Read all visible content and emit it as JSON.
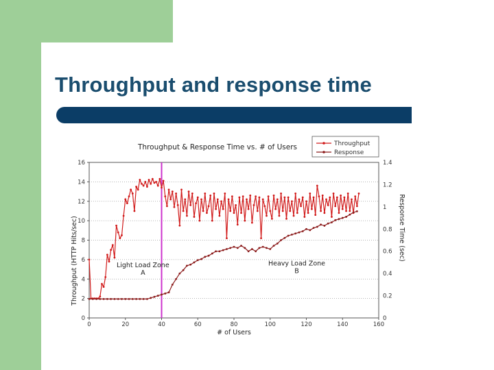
{
  "slide": {
    "title": "Throughput and response time",
    "colors": {
      "green": "#9ecf98",
      "bar": "#0b3d66",
      "title": "#1a4d6e"
    }
  },
  "chart_data": {
    "type": "line",
    "title": "Throughput & Response Time vs. # of Users",
    "xlabel": "# of Users",
    "ylabel": "Throughput (HTTP Hits/sec)",
    "y2label": "Response Time (sec)",
    "xlim": [
      0,
      160
    ],
    "ylim": [
      0,
      16
    ],
    "y2lim": [
      0,
      1.4
    ],
    "xticks": [
      "0",
      "20",
      "40",
      "60",
      "80",
      "100",
      "120",
      "140",
      "160"
    ],
    "yticks": [
      "0",
      "2",
      "4",
      "6",
      "8",
      "10",
      "12",
      "14",
      "16"
    ],
    "y2ticks": [
      "0",
      "0.2",
      "0.4",
      "0.6",
      "0.8",
      "1",
      "1.2",
      "1.4"
    ],
    "legend_position": "top-right",
    "divider_x": 40,
    "annotations": [
      {
        "text": "Light Load Zone",
        "sub": "A",
        "x": 35,
        "y": 5.2
      },
      {
        "text": "Heavy Load Zone",
        "sub": "B",
        "x": 120,
        "y": 5.4
      }
    ],
    "series": [
      {
        "name": "Throughput",
        "axis": "left",
        "color": "#d11a1a",
        "x": [
          0,
          1,
          2,
          3,
          4,
          5,
          6,
          7,
          8,
          9,
          10,
          11,
          12,
          13,
          14,
          15,
          16,
          17,
          18,
          19,
          20,
          21,
          22,
          23,
          24,
          25,
          26,
          27,
          28,
          29,
          30,
          31,
          32,
          33,
          34,
          35,
          36,
          37,
          38,
          39,
          40,
          41,
          42,
          43,
          44,
          45,
          46,
          47,
          48,
          49,
          50,
          51,
          52,
          53,
          54,
          55,
          56,
          57,
          58,
          59,
          60,
          61,
          62,
          63,
          64,
          65,
          66,
          67,
          68,
          69,
          70,
          71,
          72,
          73,
          74,
          75,
          76,
          77,
          78,
          79,
          80,
          81,
          82,
          83,
          84,
          85,
          86,
          87,
          88,
          89,
          90,
          91,
          92,
          93,
          94,
          95,
          96,
          97,
          98,
          99,
          100,
          101,
          102,
          103,
          104,
          105,
          106,
          107,
          108,
          109,
          110,
          111,
          112,
          113,
          114,
          115,
          116,
          117,
          118,
          119,
          120,
          121,
          122,
          123,
          124,
          125,
          126,
          127,
          128,
          129,
          130,
          131,
          132,
          133,
          134,
          135,
          136,
          137,
          138,
          139,
          140,
          141,
          142,
          143,
          144,
          145,
          146,
          147,
          148,
          149
        ],
        "y": [
          6,
          2,
          2,
          2,
          2,
          2,
          2.2,
          3.5,
          3.2,
          4.2,
          6.5,
          5.8,
          7,
          7.5,
          6.2,
          9.5,
          8.8,
          8.2,
          8.5,
          10.5,
          12.2,
          11.8,
          12.5,
          13.2,
          12.8,
          11,
          13.5,
          13.2,
          14.2,
          13.8,
          13.6,
          14,
          13.5,
          14.2,
          13.8,
          14.3,
          13.9,
          14,
          13.6,
          14.3,
          13.4,
          14.1,
          12.5,
          11.5,
          13.2,
          12.2,
          13,
          11.4,
          12.8,
          11.6,
          9.5,
          13.2,
          11,
          12.2,
          10.5,
          13,
          11.6,
          12.8,
          10.4,
          11.8,
          12.4,
          10,
          12.2,
          11,
          12.8,
          10.8,
          11.5,
          12.6,
          10,
          12.8,
          11.2,
          12.2,
          10.5,
          12,
          11.2,
          12.8,
          8.2,
          12.2,
          11,
          12.5,
          10.8,
          11.6,
          9.6,
          12.4,
          10.8,
          12.5,
          10,
          12.2,
          11.2,
          12.6,
          9.8,
          11.6,
          12.5,
          11,
          12.4,
          8.2,
          12.2,
          11.5,
          10.5,
          12.5,
          11,
          10.2,
          12.6,
          11.2,
          12.2,
          10.5,
          12.8,
          11,
          12.4,
          10.2,
          12.4,
          11,
          12,
          10.5,
          12.8,
          10.8,
          12.2,
          11.5,
          12.4,
          10.4,
          12,
          10.8,
          12.8,
          11.2,
          12.4,
          10.6,
          13.6,
          12.5,
          11,
          12.6,
          10.8,
          12.2,
          11.6,
          12.4,
          10.4,
          12.8,
          11.5,
          12.4,
          10.8,
          12.6,
          11.2,
          12.4,
          11,
          12.8,
          11,
          12.2,
          10.8,
          12.5,
          11.5,
          12.8
        ]
      },
      {
        "name": "Response",
        "axis": "right",
        "color": "#8b1a1a",
        "x": [
          0,
          2,
          4,
          6,
          8,
          10,
          12,
          14,
          16,
          18,
          20,
          22,
          24,
          26,
          28,
          30,
          32,
          34,
          36,
          38,
          40,
          42,
          44,
          46,
          48,
          50,
          52,
          54,
          56,
          58,
          60,
          62,
          64,
          66,
          68,
          70,
          72,
          74,
          76,
          78,
          80,
          82,
          84,
          86,
          88,
          90,
          92,
          94,
          96,
          98,
          100,
          102,
          104,
          106,
          108,
          110,
          112,
          114,
          116,
          118,
          120,
          122,
          124,
          126,
          128,
          130,
          132,
          134,
          136,
          138,
          140,
          142,
          144,
          146,
          148
        ],
        "y": [
          0.17,
          0.17,
          0.17,
          0.17,
          0.17,
          0.17,
          0.17,
          0.17,
          0.17,
          0.17,
          0.17,
          0.17,
          0.17,
          0.17,
          0.17,
          0.17,
          0.17,
          0.18,
          0.19,
          0.2,
          0.21,
          0.22,
          0.23,
          0.3,
          0.35,
          0.4,
          0.43,
          0.47,
          0.48,
          0.5,
          0.52,
          0.53,
          0.55,
          0.56,
          0.58,
          0.6,
          0.6,
          0.61,
          0.62,
          0.63,
          0.64,
          0.63,
          0.65,
          0.63,
          0.6,
          0.62,
          0.6,
          0.63,
          0.64,
          0.63,
          0.62,
          0.65,
          0.67,
          0.7,
          0.72,
          0.74,
          0.75,
          0.76,
          0.77,
          0.78,
          0.8,
          0.79,
          0.81,
          0.82,
          0.84,
          0.83,
          0.85,
          0.86,
          0.88,
          0.89,
          0.9,
          0.91,
          0.93,
          0.95,
          0.96
        ]
      }
    ]
  }
}
